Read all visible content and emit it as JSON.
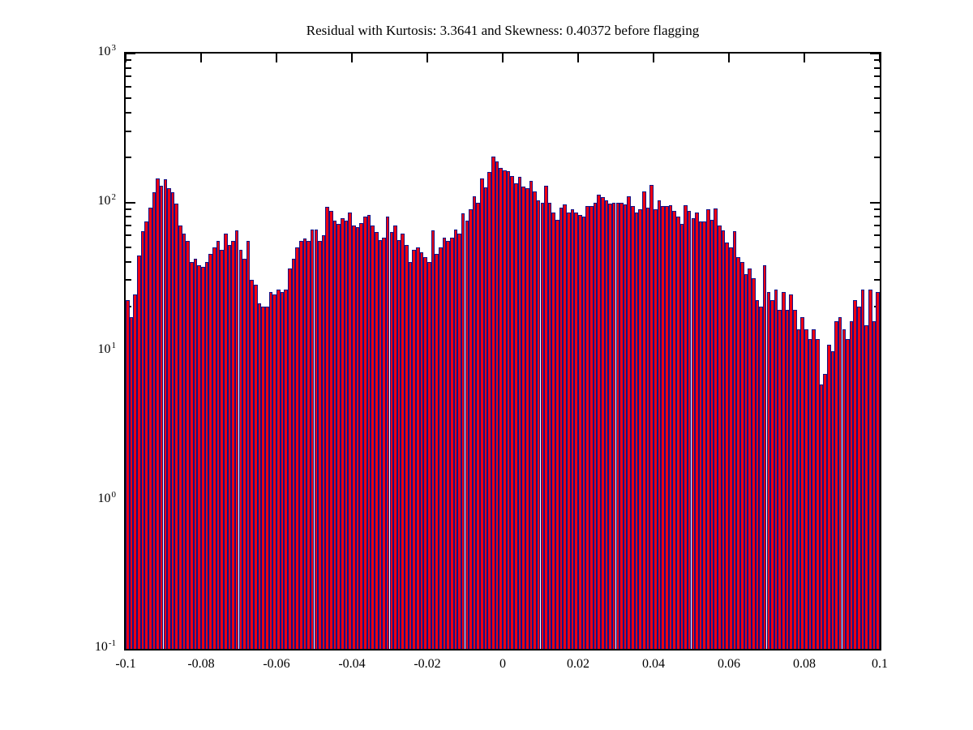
{
  "title": "Residual with Kurtosis: 3.3641 and Skewness: 0.40372 before flagging",
  "chart_data": {
    "type": "bar",
    "subtype": "histogram",
    "title": "Residual with Kurtosis: 3.3641 and Skewness: 0.40372 before flagging",
    "xlabel": "",
    "ylabel": "",
    "yscale": "log",
    "grid": false,
    "legend": null,
    "xlim": [
      -0.1,
      0.1
    ],
    "ylim_log10": [
      -1,
      3
    ],
    "x_start": -0.1,
    "bin_width": 0.001,
    "values": [
      22,
      17,
      24,
      44,
      64,
      74,
      92,
      117,
      145,
      129,
      143,
      125,
      117,
      98,
      70,
      62,
      55,
      40,
      42,
      38,
      37,
      40,
      45,
      50,
      55,
      48,
      62,
      52,
      55,
      65,
      48,
      42,
      55,
      30,
      28,
      21,
      20,
      20,
      25,
      24,
      26,
      25,
      26,
      36,
      42,
      50,
      55,
      57,
      55,
      66,
      66,
      55,
      60,
      93,
      88,
      75,
      72,
      78,
      75,
      85,
      70,
      68,
      73,
      80,
      82,
      70,
      63,
      56,
      58,
      80,
      63,
      70,
      56,
      62,
      52,
      40,
      48,
      50,
      46,
      43,
      40,
      65,
      45,
      50,
      58,
      55,
      58,
      66,
      62,
      84,
      75,
      90,
      110,
      100,
      145,
      126,
      160,
      204,
      188,
      170,
      165,
      163,
      150,
      135,
      148,
      128,
      125,
      140,
      118,
      103,
      99,
      130,
      99,
      85,
      76,
      92,
      97,
      85,
      90,
      85,
      82,
      80,
      95,
      95,
      100,
      112,
      108,
      103,
      98,
      99,
      99,
      100,
      97,
      110,
      95,
      86,
      90,
      118,
      92,
      131,
      90,
      103,
      95,
      94,
      96,
      88,
      80,
      72,
      96,
      88,
      78,
      86,
      74,
      74,
      90,
      76,
      91,
      70,
      65,
      54,
      50,
      64,
      43,
      40,
      33,
      36,
      31,
      22,
      20,
      38,
      25,
      22,
      26,
      19,
      25,
      19,
      24,
      19,
      14,
      17,
      14,
      12,
      14,
      12,
      6,
      7,
      11,
      10,
      16,
      17,
      14,
      12,
      16,
      22,
      20,
      26,
      15,
      26,
      16,
      25
    ],
    "x_ticks": [
      -0.1,
      -0.08,
      -0.06,
      -0.04,
      -0.02,
      0,
      0.02,
      0.04,
      0.06,
      0.08,
      0.1
    ],
    "x_tick_labels": [
      "-0.1",
      "-0.08",
      "-0.06",
      "-0.04",
      "-0.02",
      "0",
      "0.02",
      "0.04",
      "0.06",
      "0.08",
      "0.1"
    ],
    "y_tick_base": "10",
    "y_tick_exponents": [
      "3",
      "2",
      "1",
      "0",
      "-1"
    ],
    "y_tick_exponent_values": [
      3,
      2,
      1,
      0,
      -1
    ],
    "bar_fill": "#ee0011",
    "bar_edge": "#131388",
    "axis_color": "#000000",
    "background": "#ffffff"
  }
}
